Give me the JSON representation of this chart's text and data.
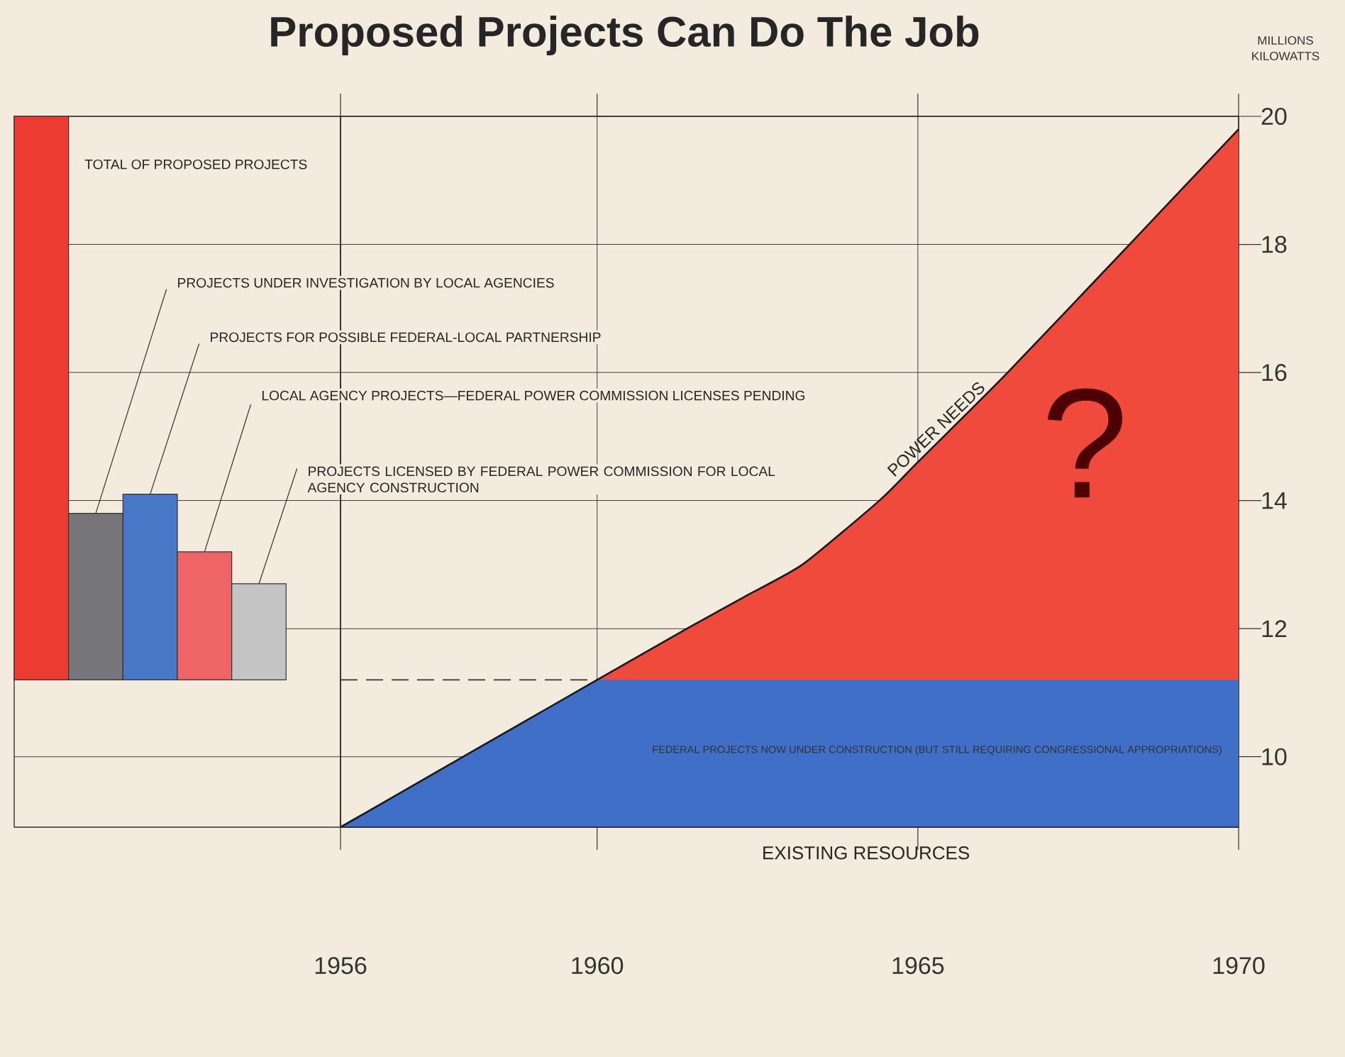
{
  "chart_data": [
    {
      "type": "bar",
      "categories": [
        null,
        null,
        null,
        null,
        null
      ],
      "annotations": [
        "TOTAL OF PROPOSED PROJECTS",
        "PROJECTS UNDER INVESTIGATION BY LOCAL AGENCIES",
        "PROJECTS FOR POSSIBLE FEDERAL-LOCAL PARTNERSHIP",
        "LOCAL AGENCY PROJECTS—FEDERAL POWER COMMISSION LICENSES PENDING",
        "PROJECTS LICENSED BY FEDERAL POWER COMMISSION FOR LOCAL AGENCY CONSTRUCTION"
      ],
      "values": [
        8.8,
        2.6,
        2.9,
        2.0,
        1.5
      ],
      "base": [
        11.2,
        11.2,
        11.2,
        11.2,
        11.2
      ],
      "colors": [
        "#ec3b30",
        "#76767a",
        "#4a78c8",
        "#ee6464",
        "#c4c4c4"
      ],
      "ylim": [
        8.9,
        20
      ],
      "yticks": [
        10,
        12,
        14,
        16,
        18,
        20
      ],
      "tick_labels": false,
      "grid": "y"
    },
    {
      "type": "area",
      "title": "Proposed Projects Can Do The Job",
      "ylabel": "MILLIONS KILOWATTS",
      "xlim": [
        1956,
        1970
      ],
      "xticks": [
        1956,
        1960,
        1965,
        1970
      ],
      "ylim": [
        8.9,
        20
      ],
      "yticks": [
        10,
        12,
        14,
        16,
        18,
        20
      ],
      "grid": true,
      "series": [
        {
          "name": "POWER NEEDS",
          "color": "#f04a3c",
          "x": [
            1956,
            1960,
            1961.4,
            1962.3,
            1963.2,
            1964.4,
            1965,
            1966.4,
            1968.3,
            1970
          ],
          "values": [
            8.9,
            11.2,
            12.0,
            12.5,
            13.0,
            14.0,
            14.6,
            16.0,
            18.0,
            19.8
          ]
        },
        {
          "name": "FEDERAL PROJECTS NOW UNDER CONSTRUCTION (BUT STILL REQUIRING CONGRESSIONAL APPROPRIATIONS)",
          "color": "#3f6fc6",
          "x": [
            1956,
            1960,
            1970
          ],
          "values": [
            8.9,
            11.2,
            11.2
          ]
        }
      ],
      "ref_lines": [
        {
          "axis": "y",
          "value": 11.2,
          "line_style": "dashed"
        }
      ],
      "annotations": [
        "EXISTING RESOURCES",
        "?"
      ]
    }
  ]
}
